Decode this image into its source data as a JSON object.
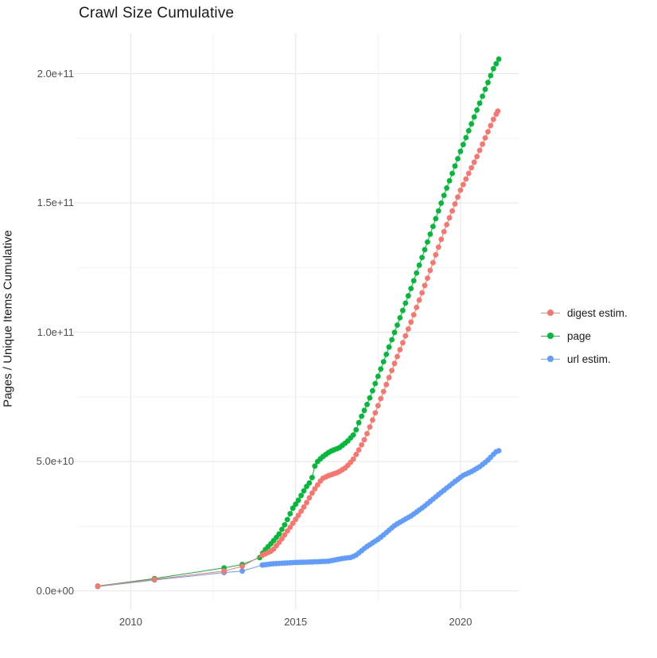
{
  "title": "Crawl Size Cumulative",
  "axes": {
    "y_title": "Pages / Unique Items Cumulative",
    "x_tick_labels": [
      "2010",
      "2015",
      "2020"
    ],
    "y_tick_labels": [
      "0.0e+00",
      "5.0e+10",
      "1.0e+11",
      "1.5e+11",
      "2.0e+11"
    ]
  },
  "legend": {
    "items": [
      {
        "label": "digest estim.",
        "color": "#F8766D"
      },
      {
        "label": "page",
        "color": "#00BA38"
      },
      {
        "label": "url estim.",
        "color": "#619CFF"
      }
    ]
  },
  "colors": {
    "digest": "#F8766D",
    "page": "#00BA38",
    "url": "#619CFF",
    "grid_major": "#e8e8e8",
    "grid_minor": "#f3f3f3",
    "tick_label": "#4d4d4d"
  },
  "chart_data": {
    "type": "scatter",
    "title": "Crawl Size Cumulative",
    "xlabel": "",
    "ylabel": "Pages / Unique Items Cumulative",
    "xlim": [
      2008.4,
      2021.76
    ],
    "ylim": [
      -4400000000.0,
      215550000000.0
    ],
    "x_major_ticks": [
      2010,
      2015,
      2020
    ],
    "x_minor_ticks": [
      2012.5,
      2017.5
    ],
    "y_major_ticks": [
      0,
      50000000000.0,
      100000000000.0,
      150000000000.0,
      200000000000.0
    ],
    "y_minor_ticks": [
      25000000000.0,
      75000000000.0,
      125000000000.0,
      175000000000.0
    ],
    "grid": true,
    "legend_position": "right",
    "point_interval_years": 0.0833,
    "dense_start_year": 2014.0,
    "series": [
      {
        "name": "url estim.",
        "color": "#619CFF",
        "anchors": [
          [
            2009.0,
            1700000000.0
          ],
          [
            2010.72,
            4200000000.0
          ],
          [
            2012.83,
            7100000000.0
          ],
          [
            2013.38,
            7700000000.0
          ],
          [
            2013.99,
            10000000000.0
          ],
          [
            2014.3,
            10500000000.0
          ],
          [
            2014.7,
            10800000000.0
          ],
          [
            2015.0,
            11000000000.0
          ],
          [
            2015.5,
            11200000000.0
          ],
          [
            2016.0,
            11500000000.0
          ],
          [
            2016.4,
            12500000000.0
          ],
          [
            2016.7,
            13000000000.0
          ],
          [
            2016.85,
            14000000000.0
          ],
          [
            2017.13,
            16900000000.0
          ],
          [
            2017.54,
            20300000000.0
          ],
          [
            2018.02,
            25500000000.0
          ],
          [
            2018.5,
            29000000000.0
          ],
          [
            2018.89,
            32600000000.0
          ],
          [
            2019.3,
            36900000000.0
          ],
          [
            2019.78,
            41800000000.0
          ],
          [
            2020.07,
            44600000000.0
          ],
          [
            2020.34,
            46200000000.0
          ],
          [
            2020.58,
            48000000000.0
          ],
          [
            2020.8,
            50200000000.0
          ],
          [
            2020.94,
            52000000000.0
          ],
          [
            2021.06,
            53700000000.0
          ],
          [
            2021.16,
            54200000000.0
          ]
        ]
      },
      {
        "name": "page",
        "color": "#00BA38",
        "anchors": [
          [
            2009.0,
            1900000000.0
          ],
          [
            2010.72,
            4800000000.0
          ],
          [
            2012.83,
            8900000000.0
          ],
          [
            2013.38,
            10200000000.0
          ],
          [
            2013.91,
            12900000000.0
          ],
          [
            2014.06,
            15700000000.0
          ],
          [
            2014.27,
            18500000000.0
          ],
          [
            2014.49,
            21800000000.0
          ],
          [
            2014.71,
            26500000000.0
          ],
          [
            2014.9,
            31700000000.0
          ],
          [
            2015.07,
            34800000000.0
          ],
          [
            2015.31,
            40000000000.0
          ],
          [
            2015.48,
            42800000000.0
          ],
          [
            2015.6,
            49200000000.0
          ],
          [
            2015.8,
            51700000000.0
          ],
          [
            2016.04,
            53900000000.0
          ],
          [
            2016.33,
            55400000000.0
          ],
          [
            2016.57,
            57800000000.0
          ],
          [
            2016.79,
            60900000000.0
          ],
          [
            2016.96,
            66500000000.0
          ],
          [
            2017.2,
            73000000000.0
          ],
          [
            2017.5,
            83000000000.0
          ],
          [
            2018.0,
            100000000000.0
          ],
          [
            2018.5,
            117000000000.0
          ],
          [
            2019.0,
            135000000000.0
          ],
          [
            2019.5,
            153000000000.0
          ],
          [
            2020.0,
            170000000000.0
          ],
          [
            2020.5,
            186000000000.0
          ],
          [
            2021.0,
            202000000000.0
          ],
          [
            2021.16,
            205600000000.0
          ]
        ]
      },
      {
        "name": "digest estim.",
        "color": "#F8766D",
        "anchors": [
          [
            2009.0,
            1800000000.0
          ],
          [
            2010.72,
            4500000000.0
          ],
          [
            2012.83,
            7700000000.0
          ],
          [
            2013.38,
            9500000000.0
          ],
          [
            2013.99,
            13800000000.0
          ],
          [
            2014.3,
            15700000000.0
          ],
          [
            2014.54,
            19400000000.0
          ],
          [
            2014.83,
            24600000000.0
          ],
          [
            2015.05,
            28600000000.0
          ],
          [
            2015.29,
            33200000000.0
          ],
          [
            2015.53,
            38500000000.0
          ],
          [
            2015.8,
            43400000000.0
          ],
          [
            2016.0,
            44600000000.0
          ],
          [
            2016.28,
            45800000000.0
          ],
          [
            2016.52,
            47700000000.0
          ],
          [
            2016.74,
            50800000000.0
          ],
          [
            2016.93,
            54800000000.0
          ],
          [
            2017.12,
            59400000000.0
          ],
          [
            2017.3,
            65000000000.0
          ],
          [
            2017.54,
            73000000000.0
          ],
          [
            2018.0,
            88000000000.0
          ],
          [
            2018.5,
            104000000000.0
          ],
          [
            2019.0,
            121000000000.0
          ],
          [
            2019.5,
            139000000000.0
          ],
          [
            2020.0,
            155000000000.0
          ],
          [
            2020.5,
            168000000000.0
          ],
          [
            2021.0,
            182400000000.0
          ],
          [
            2021.13,
            185500000000.0
          ]
        ]
      }
    ]
  }
}
